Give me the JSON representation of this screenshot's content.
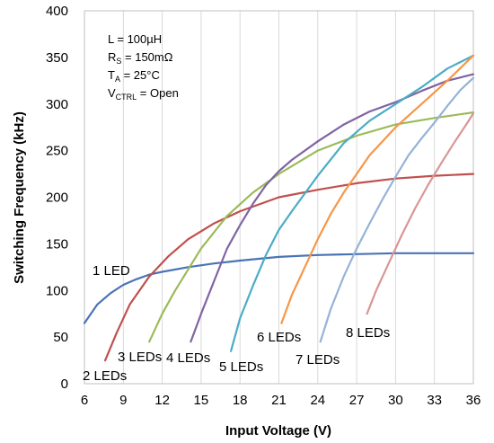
{
  "chart_data": {
    "type": "line",
    "xlabel": "Input Voltage (V)",
    "ylabel": "Switching Frequency (kHz)",
    "xlim": [
      6,
      36
    ],
    "ylim": [
      0,
      400
    ],
    "xticks": [
      6,
      9,
      12,
      15,
      18,
      21,
      24,
      27,
      30,
      33,
      36
    ],
    "yticks": [
      0,
      50,
      100,
      150,
      200,
      250,
      300,
      350,
      400
    ],
    "grid": "vertical",
    "conditions": {
      "inductor": "L = 100µH",
      "sense_r_prefix": "R",
      "sense_r_sub": "S",
      "sense_r_value": " = 150mΩ",
      "temp_prefix": "T",
      "temp_sub": "A",
      "temp_value": " = 25°C",
      "ctrl_prefix": "V",
      "ctrl_sub": "CTRL",
      "ctrl_value": " = Open"
    },
    "series": [
      {
        "name": "1 LED",
        "color": "#4a73b5",
        "x": [
          6,
          7,
          8,
          9,
          10,
          11,
          12,
          14,
          16,
          18,
          21,
          24,
          27,
          30,
          33,
          36
        ],
        "y": [
          65,
          85,
          97,
          106,
          112,
          117,
          120,
          125,
          129,
          132,
          136,
          138,
          139,
          140,
          140,
          140
        ]
      },
      {
        "name": "2 LEDs",
        "color": "#c0504d",
        "x": [
          7.6,
          8.5,
          9.5,
          11,
          12.5,
          14,
          16,
          18,
          21,
          24,
          27,
          30,
          33,
          36
        ],
        "y": [
          25,
          55,
          85,
          115,
          137,
          155,
          172,
          185,
          200,
          208,
          215,
          220,
          223,
          225
        ]
      },
      {
        "name": "3 LEDs",
        "color": "#9bbb59",
        "x": [
          11,
          12,
          13,
          15,
          17,
          19,
          21,
          24,
          27,
          30,
          33,
          36
        ],
        "y": [
          45,
          75,
          100,
          145,
          180,
          205,
          225,
          250,
          266,
          278,
          285,
          291
        ]
      },
      {
        "name": "4 LEDs",
        "color": "#8064a2",
        "x": [
          14.2,
          15,
          16,
          17,
          18,
          19,
          20,
          21,
          22,
          24,
          26,
          28,
          30,
          32,
          34,
          36
        ],
        "y": [
          45,
          75,
          110,
          145,
          170,
          193,
          213,
          228,
          240,
          260,
          278,
          292,
          302,
          314,
          325,
          332
        ]
      },
      {
        "name": "5 LEDs",
        "color": "#4bacc6",
        "x": [
          17.3,
          18,
          19,
          20,
          21,
          22,
          24,
          26,
          28,
          30,
          32,
          34,
          36
        ],
        "y": [
          35,
          70,
          105,
          138,
          165,
          185,
          223,
          258,
          282,
          300,
          318,
          338,
          352
        ]
      },
      {
        "name": "6 LEDs",
        "color": "#f79646",
        "x": [
          21.2,
          22,
          23,
          24,
          25,
          26,
          27,
          28,
          30,
          32,
          34,
          36
        ],
        "y": [
          65,
          95,
          125,
          155,
          182,
          205,
          225,
          245,
          275,
          300,
          325,
          352
        ]
      },
      {
        "name": "7 LEDs",
        "color": "#95b3d7",
        "x": [
          24.2,
          25,
          26,
          27,
          28,
          29,
          30,
          31,
          32,
          33,
          34,
          35,
          36
        ],
        "y": [
          45,
          80,
          115,
          145,
          172,
          198,
          222,
          245,
          263,
          280,
          298,
          315,
          328
        ]
      },
      {
        "name": "8 LEDs",
        "color": "#d99694",
        "x": [
          27.8,
          28.5,
          29.5,
          30.5,
          31.5,
          32.5,
          33.5,
          34.5,
          35.5,
          36
        ],
        "y": [
          75,
          100,
          130,
          160,
          188,
          213,
          236,
          258,
          279,
          290
        ]
      }
    ]
  }
}
